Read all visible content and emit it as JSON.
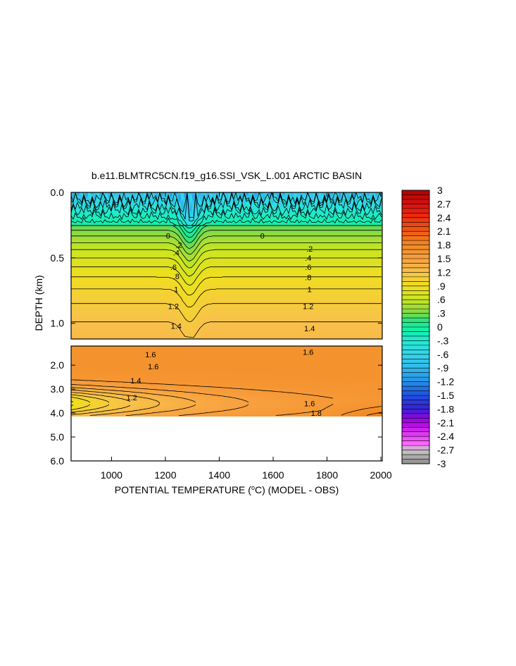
{
  "chart_data": {
    "type": "heatmap",
    "title": "b.e11.BLMTRC5CN.f19_g16.SSI_VSK_L.001 ARCTIC BASIN",
    "xlabel": "POTENTIAL TEMPERATURE (",
    "xlabel_unit": "°C",
    "xlabel_suffix": ") (MODEL - OBS)",
    "ylabel": "DEPTH (km)",
    "x_range": [
      850,
      2005
    ],
    "x_ticks": [
      "1000",
      "1200",
      "1400",
      "1600",
      "1800",
      "2000"
    ],
    "x_tick_values": [
      1000,
      1200,
      1400,
      1600,
      1800,
      2000
    ],
    "upper_panel": {
      "y_range": [
        0.0,
        1.12
      ],
      "y_ticks": [
        "0.0",
        "0.5",
        "1.0"
      ],
      "y_tick_values": [
        0.0,
        0.5,
        1.0
      ],
      "contour_labels": [
        {
          "text": "0",
          "x": 1560,
          "y": 0.33
        },
        {
          "text": "0",
          "x": 1210,
          "y": 0.33
        },
        {
          "text": ".2",
          "x": 1250,
          "y": 0.4
        },
        {
          "text": ".4",
          "x": 1240,
          "y": 0.46
        },
        {
          "text": ".6",
          "x": 1230,
          "y": 0.57
        },
        {
          "text": ".8",
          "x": 1240,
          "y": 0.64
        },
        {
          "text": "1",
          "x": 1240,
          "y": 0.74
        },
        {
          "text": "1.2",
          "x": 1230,
          "y": 0.87
        },
        {
          "text": "1.4",
          "x": 1240,
          "y": 1.02
        },
        {
          "text": ".2",
          "x": 1735,
          "y": 0.43
        },
        {
          "text": ".4",
          "x": 1730,
          "y": 0.5
        },
        {
          "text": ".6",
          "x": 1730,
          "y": 0.57
        },
        {
          "text": ".8",
          "x": 1730,
          "y": 0.65
        },
        {
          "text": "1",
          "x": 1735,
          "y": 0.74
        },
        {
          "text": "1.2",
          "x": 1730,
          "y": 0.87
        },
        {
          "text": "1.4",
          "x": 1735,
          "y": 1.04
        }
      ]
    },
    "lower_panel": {
      "y_range": [
        1.2,
        6.0
      ],
      "y_ticks": [
        "2.0",
        "3.0",
        "4.0",
        "5.0",
        "6.0"
      ],
      "y_tick_values": [
        2.0,
        3.0,
        4.0,
        5.0,
        6.0
      ],
      "data_bottom_depth": 4.1,
      "contour_labels": [
        {
          "text": "1.6",
          "x": 1145,
          "y": 1.55
        },
        {
          "text": "1.6",
          "x": 1730,
          "y": 1.45
        },
        {
          "text": "1.6",
          "x": 1155,
          "y": 2.05
        },
        {
          "text": "1.4",
          "x": 1090,
          "y": 2.65
        },
        {
          "text": "1.2",
          "x": 1075,
          "y": 3.35
        },
        {
          "text": "1.6",
          "x": 1735,
          "y": 3.6
        },
        {
          "text": "1.8",
          "x": 1760,
          "y": 4.0
        }
      ]
    },
    "colorbar": {
      "labels": [
        "3",
        "2.7",
        "2.4",
        "2.1",
        "1.8",
        "1.5",
        "1.2",
        ".9",
        ".6",
        ".3",
        "0",
        "-.3",
        "-.6",
        "-.9",
        "-1.2",
        "-1.5",
        "-1.8",
        "-2.1",
        "-2.4",
        "-2.7",
        "-3"
      ],
      "levels": [
        3,
        2.7,
        2.4,
        2.1,
        1.8,
        1.5,
        1.2,
        0.9,
        0.6,
        0.3,
        0,
        -0.3,
        -0.6,
        -0.9,
        -1.2,
        -1.5,
        -1.8,
        -2.1,
        -2.4,
        -2.7,
        -3
      ],
      "range": [
        -3,
        3
      ],
      "stops": [
        {
          "v": -3.0,
          "color": "#8c8c8c"
        },
        {
          "v": -2.7,
          "color": "#c8c8c8"
        },
        {
          "v": -2.55,
          "color": "#ff66ff"
        },
        {
          "v": -2.1,
          "color": "#b400e6"
        },
        {
          "v": -1.8,
          "color": "#3a1fd8"
        },
        {
          "v": -1.5,
          "color": "#1e4fe0"
        },
        {
          "v": -1.2,
          "color": "#2590e8"
        },
        {
          "v": -0.9,
          "color": "#2fb9ec"
        },
        {
          "v": -0.6,
          "color": "#35d6ea"
        },
        {
          "v": -0.3,
          "color": "#20ead0"
        },
        {
          "v": 0.0,
          "color": "#10f0a0"
        },
        {
          "v": 0.15,
          "color": "#2ee57a"
        },
        {
          "v": 0.3,
          "color": "#7cd84a"
        },
        {
          "v": 0.6,
          "color": "#c8e620"
        },
        {
          "v": 0.9,
          "color": "#f0de20"
        },
        {
          "v": 1.2,
          "color": "#f8c24a"
        },
        {
          "v": 1.5,
          "color": "#f8a040"
        },
        {
          "v": 1.8,
          "color": "#f28a22"
        },
        {
          "v": 2.1,
          "color": "#f05a10"
        },
        {
          "v": 2.4,
          "color": "#ee3010"
        },
        {
          "v": 2.7,
          "color": "#d81010"
        },
        {
          "v": 3.0,
          "color": "#b00000"
        }
      ]
    }
  }
}
